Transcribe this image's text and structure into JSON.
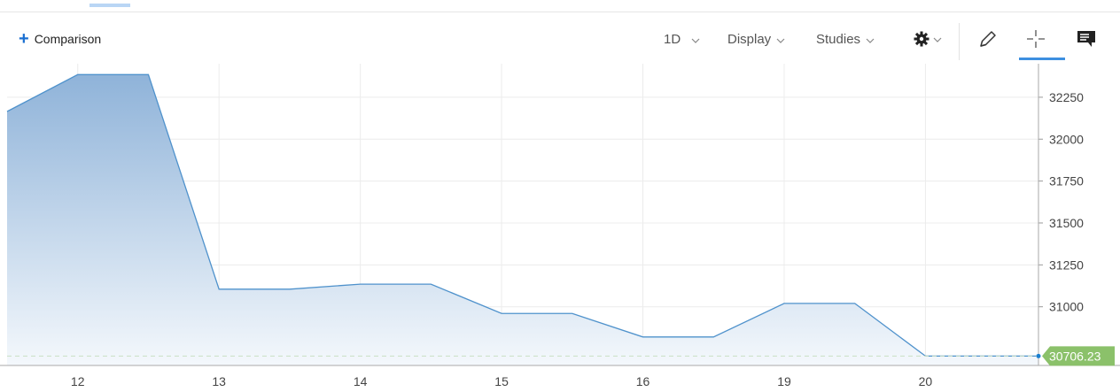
{
  "toolbar": {
    "comparison_label": "Comparison",
    "interval_label": "1D",
    "display_label": "Display",
    "studies_label": "Studies",
    "icons": [
      "plus-icon",
      "chevron-down-icon",
      "gear-icon",
      "pencil-icon",
      "crosshair-icon",
      "comment-icon"
    ]
  },
  "colors": {
    "line": "#4f92cc",
    "fill_top": "#8fb3d9",
    "fill_bottom": "#f4f8fc",
    "price_tag": "#8bc16a",
    "accent": "#3d8fe0"
  },
  "chart_data": {
    "type": "area",
    "x_tick_labels": [
      "12",
      "13",
      "14",
      "15",
      "16",
      "19",
      "20"
    ],
    "y_tick_labels": [
      "32250",
      "32000",
      "31750",
      "31500",
      "31250",
      "31000"
    ],
    "y_ticks": [
      32250,
      32000,
      31750,
      31500,
      31250,
      31000
    ],
    "ylim": [
      30650,
      32450
    ],
    "xlim": [
      -0.5,
      6.8
    ],
    "points": [
      {
        "x": -0.5,
        "y": 32165
      },
      {
        "x": 0,
        "y": 32385
      },
      {
        "x": 0.5,
        "y": 32385
      },
      {
        "x": 1,
        "y": 31105
      },
      {
        "x": 1.5,
        "y": 31105
      },
      {
        "x": 2,
        "y": 31135
      },
      {
        "x": 2.5,
        "y": 31135
      },
      {
        "x": 3,
        "y": 30960
      },
      {
        "x": 3.5,
        "y": 30960
      },
      {
        "x": 4,
        "y": 30820
      },
      {
        "x": 4.5,
        "y": 30820
      },
      {
        "x": 5,
        "y": 31020
      },
      {
        "x": 5.5,
        "y": 31020
      },
      {
        "x": 6,
        "y": 30706.23
      },
      {
        "x": 6.8,
        "y": 30706.23
      }
    ],
    "last_price": 30706.23,
    "last_price_label": "30706.23",
    "grid": true
  }
}
